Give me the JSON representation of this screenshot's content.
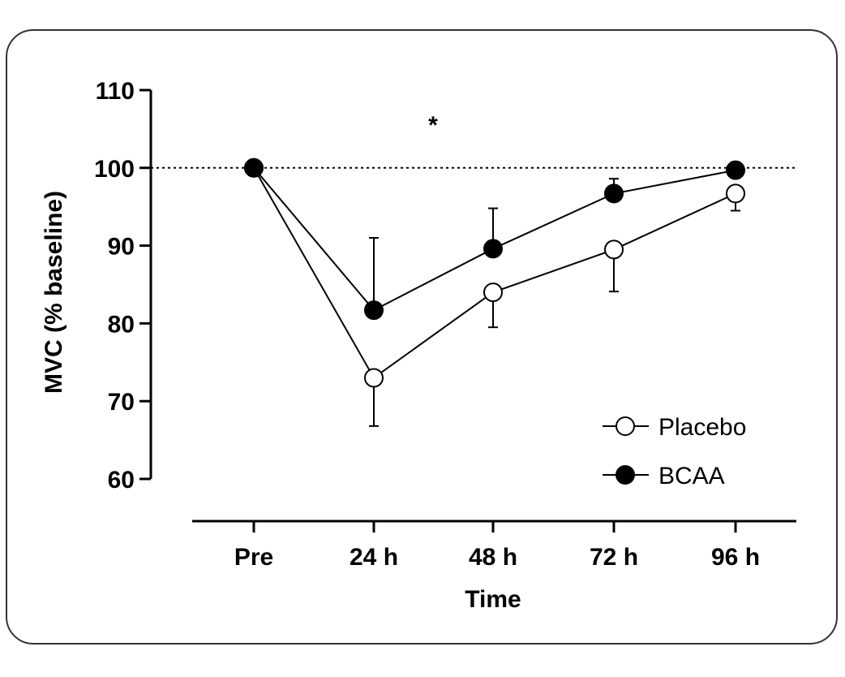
{
  "chart_data": {
    "type": "line",
    "title": "",
    "xlabel": "Time",
    "ylabel": "MVC (% baseline)",
    "categories": [
      "Pre",
      "24 h",
      "48 h",
      "72 h",
      "96 h"
    ],
    "ylim": [
      60,
      110
    ],
    "yticks": [
      60,
      70,
      80,
      90,
      100,
      110
    ],
    "ytick_labels": [
      "60",
      "70",
      "80",
      "90",
      "100",
      "110"
    ],
    "reference_line": 100,
    "annotation": "*",
    "legend_position": "bottom-right",
    "series": [
      {
        "name": "Placebo",
        "marker": "open-circle",
        "values": [
          100,
          73,
          84,
          89.5,
          96.7
        ],
        "err_dir": [
          "down",
          "down",
          "down",
          "down",
          "down"
        ],
        "errors": [
          0,
          6.2,
          4.5,
          5.4,
          2.2
        ]
      },
      {
        "name": "BCAA",
        "marker": "filled-circle",
        "values": [
          100,
          81.7,
          89.6,
          96.7,
          99.7
        ],
        "err_dir": [
          "up",
          "up",
          "up",
          "up",
          "up"
        ],
        "errors": [
          0,
          9.3,
          5.2,
          1.9,
          0.7
        ]
      }
    ],
    "colors": {
      "line": "#000000",
      "open_fill": "#ffffff",
      "filled_fill": "#000000"
    }
  }
}
